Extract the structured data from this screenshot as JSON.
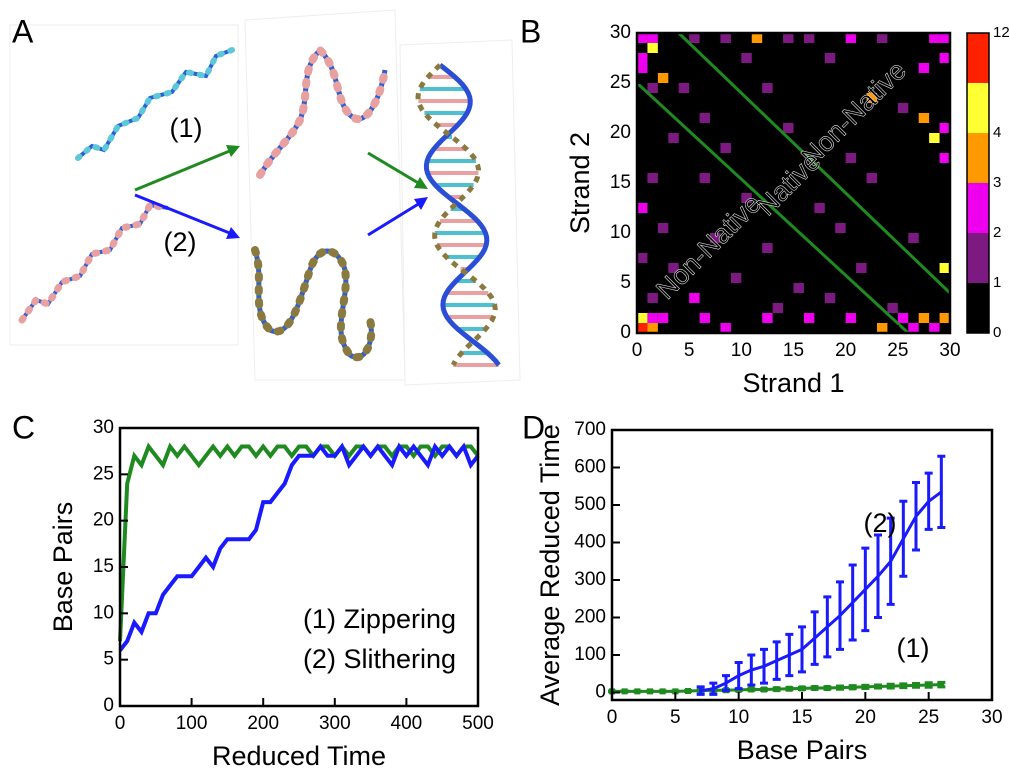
{
  "panel_labels": [
    "A",
    "B",
    "C",
    "D"
  ],
  "diagram": {
    "labels": [
      "(1)",
      "(2)"
    ],
    "colors": [
      "#1f8a1f",
      "#1a1aff"
    ]
  },
  "chart_data": [
    {
      "type": "heatmap",
      "x_label": "Strand 1",
      "y_label": "Strand 2",
      "xlim": [
        0,
        30
      ],
      "ylim": [
        0,
        30
      ],
      "xticks": [
        0,
        5,
        10,
        15,
        20,
        25,
        30
      ],
      "yticks": [
        0,
        5,
        10,
        15,
        20,
        25,
        30
      ],
      "background": "#000000",
      "x": [
        0,
        1,
        5,
        8,
        11,
        14,
        16,
        20,
        23,
        28,
        29,
        1,
        0,
        0,
        2,
        1,
        4,
        10,
        18,
        27,
        29,
        6,
        12,
        25,
        27,
        29,
        3,
        8,
        14,
        20,
        29,
        1,
        6,
        10,
        17,
        22,
        0,
        2,
        7,
        12,
        19,
        26,
        0,
        3,
        9,
        15,
        21,
        29,
        1,
        5,
        13,
        18,
        24,
        0,
        1,
        2,
        6,
        8,
        12,
        16,
        20,
        23,
        25,
        27,
        28,
        29,
        26,
        0,
        1,
        28,
        22
      ],
      "y": [
        29,
        29,
        29,
        29,
        29,
        29,
        29,
        29,
        29,
        29,
        29,
        28,
        27,
        26,
        25,
        24,
        24,
        27,
        27,
        26,
        27,
        21,
        24,
        22,
        21,
        20,
        19,
        18,
        20,
        17,
        17,
        15,
        15,
        13,
        12,
        15,
        12,
        10,
        9,
        8,
        10,
        9,
        7,
        6,
        5,
        4,
        6,
        6,
        3,
        3,
        2,
        3,
        2,
        1,
        1,
        1,
        1,
        0,
        1,
        1,
        1,
        0,
        1,
        1,
        0,
        1,
        0,
        0,
        0,
        19,
        23
      ],
      "values": [
        2,
        2,
        1,
        1,
        3,
        1,
        1,
        2,
        1,
        2,
        2,
        4,
        2,
        2,
        3,
        1,
        1,
        1,
        1,
        2,
        2,
        1,
        1,
        1,
        3,
        2,
        1,
        1,
        1,
        1,
        2,
        1,
        1,
        1,
        1,
        1,
        2,
        1,
        1,
        1,
        1,
        1,
        1,
        1,
        1,
        1,
        1,
        4,
        1,
        2,
        1,
        1,
        1,
        4,
        2,
        2,
        2,
        2,
        2,
        2,
        2,
        3,
        2,
        3,
        2,
        3,
        2,
        10,
        3,
        4,
        3
      ],
      "colorbar": {
        "colors": [
          "#000000",
          "#7d1a82",
          "#ee00ee",
          "#ff9900",
          "#ffff33",
          "#ff2200"
        ],
        "ticks": [
          0,
          1,
          2,
          3,
          4,
          12
        ]
      },
      "lines": [
        {
          "x": [
            0,
            26
          ],
          "y": [
            25,
            0
          ],
          "color": "#1f8a1f"
        },
        {
          "x": [
            4,
            30
          ],
          "y": [
            30,
            4
          ],
          "color": "#1f8a1f"
        }
      ],
      "annotations": [
        {
          "text": "Non-Native",
          "color": "#3a3aff"
        },
        {
          "text": "Native",
          "color": "#2e8a2e"
        },
        {
          "text": "Non-Native",
          "color": "#3a3aff"
        }
      ]
    },
    {
      "type": "line",
      "x_label": "Reduced Time",
      "y_label": "Base Pairs",
      "xlim": [
        0,
        500
      ],
      "ylim": [
        0,
        30
      ],
      "xticks": [
        0,
        100,
        200,
        300,
        400,
        500
      ],
      "yticks": [
        0,
        5,
        10,
        15,
        20,
        25,
        30
      ],
      "legend": "lower right",
      "x": [
        0,
        10,
        20,
        30,
        40,
        50,
        60,
        70,
        80,
        90,
        100,
        110,
        120,
        130,
        140,
        150,
        160,
        170,
        180,
        190,
        200,
        210,
        220,
        230,
        240,
        250,
        260,
        270,
        280,
        290,
        300,
        310,
        320,
        330,
        340,
        350,
        360,
        370,
        380,
        390,
        400,
        410,
        420,
        430,
        440,
        450,
        460,
        470,
        480,
        490,
        500
      ],
      "series": [
        {
          "name": "(1) Zippering",
          "color": "#1f8a1f",
          "values": [
            7,
            24,
            27,
            26,
            28,
            27,
            26,
            28,
            27,
            28,
            27,
            26,
            27,
            28,
            27,
            28,
            27,
            28,
            28,
            27,
            28,
            27,
            28,
            28,
            27,
            28,
            28,
            27,
            28,
            28,
            27,
            28,
            27,
            28,
            28,
            27,
            28,
            28,
            27,
            28,
            28,
            27,
            28,
            28,
            27,
            28,
            28,
            27,
            28,
            28,
            27
          ]
        },
        {
          "name": "(2) Slithering",
          "color": "#1a1aff",
          "values": [
            6,
            7,
            9,
            8,
            10,
            10,
            12,
            13,
            14,
            14,
            14,
            15,
            16,
            15,
            17,
            18,
            18,
            18,
            18,
            19,
            22,
            22,
            23,
            24,
            26,
            27,
            27,
            27,
            28,
            27,
            27,
            28,
            26,
            27,
            28,
            27,
            28,
            27,
            26,
            28,
            27,
            28,
            27,
            26,
            28,
            27,
            28,
            27,
            28,
            26,
            27
          ]
        }
      ]
    },
    {
      "type": "errorbar",
      "x_label": "Base Pairs",
      "y_label": "Average Reduced Time",
      "xlim": [
        0,
        30
      ],
      "ylim": [
        -20,
        700
      ],
      "xticks": [
        0,
        5,
        10,
        15,
        20,
        25,
        30
      ],
      "yticks": [
        0,
        100,
        200,
        300,
        400,
        500,
        600,
        700
      ],
      "series": [
        {
          "name": "(1)",
          "color": "#1f8a1f",
          "marker": "square",
          "x": [
            0,
            1,
            2,
            3,
            4,
            5,
            6,
            7,
            8,
            9,
            10,
            11,
            12,
            13,
            14,
            15,
            16,
            17,
            18,
            19,
            20,
            21,
            22,
            23,
            24,
            25,
            26
          ],
          "values": [
            3,
            3,
            3,
            3,
            3,
            3,
            4,
            5,
            6,
            6,
            7,
            8,
            8,
            9,
            10,
            11,
            12,
            12,
            13,
            14,
            15,
            16,
            17,
            18,
            19,
            20,
            21
          ],
          "errors": [
            1,
            1,
            1,
            1,
            1,
            1,
            1,
            2,
            2,
            2,
            2,
            2,
            2,
            3,
            3,
            3,
            3,
            3,
            4,
            4,
            4,
            4,
            5,
            5,
            5,
            6,
            6
          ]
        },
        {
          "name": "(2)",
          "color": "#1a1aff",
          "x": [
            7,
            8,
            9,
            10,
            11,
            12,
            13,
            14,
            15,
            16,
            17,
            18,
            19,
            20,
            21,
            22,
            23,
            24,
            25,
            26
          ],
          "values": [
            5,
            10,
            25,
            45,
            60,
            70,
            85,
            100,
            115,
            145,
            175,
            205,
            240,
            275,
            310,
            350,
            410,
            470,
            510,
            535
          ],
          "errors": [
            10,
            15,
            20,
            35,
            40,
            45,
            50,
            55,
            60,
            70,
            80,
            90,
            100,
            110,
            110,
            115,
            100,
            90,
            75,
            95
          ]
        }
      ]
    }
  ]
}
